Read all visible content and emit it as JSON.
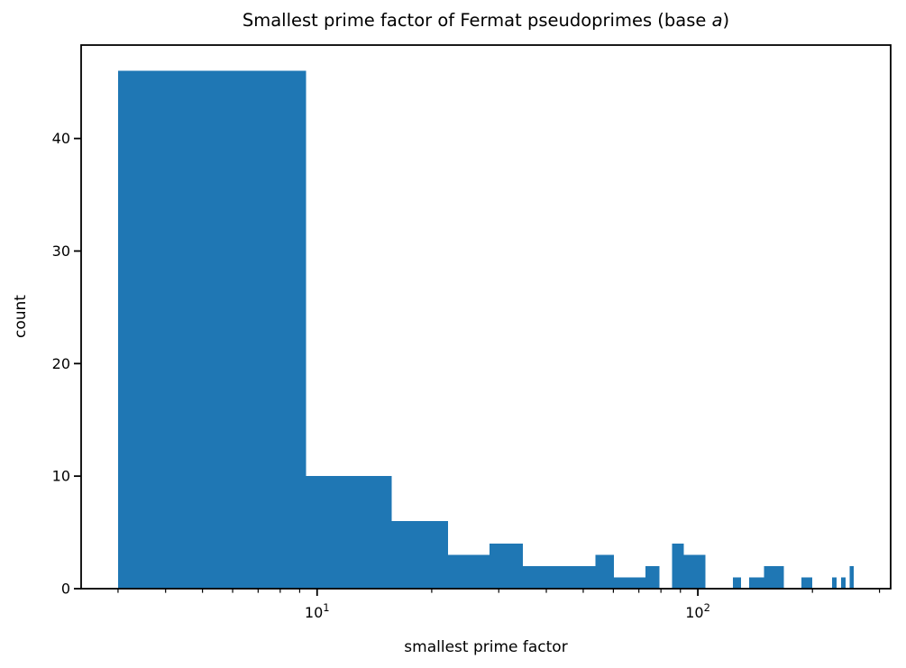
{
  "title": {
    "prefix": "Smallest prime factor of Fermat pseudoprimes (base ",
    "italic": "a",
    "suffix": ")"
  },
  "chart_data": {
    "type": "bar",
    "subtype": "histogram",
    "title": "Smallest prime factor of Fermat pseudoprimes (base a)",
    "xlabel": "smallest prime factor",
    "ylabel": "count",
    "x_scale": "log",
    "xlim": [
      2.4,
      321
    ],
    "ylim": [
      0,
      48.3
    ],
    "grid": false,
    "bar_color": "#1f77b4",
    "spine_color": "#000000",
    "bin_edges": [
      3,
      9.35,
      15.7,
      22.05,
      28.4,
      34.75,
      41.1,
      47.45,
      53.8,
      60.15,
      66.5,
      72.85,
      79.2,
      85.55,
      91.9,
      98.25,
      104.6,
      110.95,
      117.3,
      123.65,
      130,
      136.35,
      142.7,
      149.05,
      155.4,
      161.75,
      168.1,
      174.45,
      180.8,
      187.15,
      193.5,
      199.85,
      206.2,
      212.55,
      218.9,
      225.25,
      231.6,
      237.95,
      244.3,
      250.65,
      257
    ],
    "counts": [
      46,
      10,
      6,
      3,
      4,
      2,
      2,
      2,
      3,
      1,
      1,
      2,
      0,
      4,
      3,
      3,
      0,
      0,
      0,
      1,
      0,
      1,
      1,
      2,
      2,
      2,
      0,
      0,
      0,
      1,
      1,
      0,
      0,
      0,
      0,
      1,
      0,
      1,
      0,
      2
    ],
    "total_count": 107,
    "y_ticks": [
      {
        "value": 0,
        "label": "0"
      },
      {
        "value": 10,
        "label": "10"
      },
      {
        "value": 20,
        "label": "20"
      },
      {
        "value": 30,
        "label": "30"
      },
      {
        "value": 40,
        "label": "40"
      }
    ],
    "x_major_ticks": [
      {
        "value": 10,
        "mantissa": "10",
        "exponent": "1"
      },
      {
        "value": 100,
        "mantissa": "10",
        "exponent": "2"
      }
    ],
    "x_minor_ticks": [
      3,
      4,
      5,
      6,
      7,
      8,
      9,
      20,
      30,
      40,
      50,
      60,
      70,
      80,
      90,
      200,
      300
    ],
    "legend": null
  }
}
